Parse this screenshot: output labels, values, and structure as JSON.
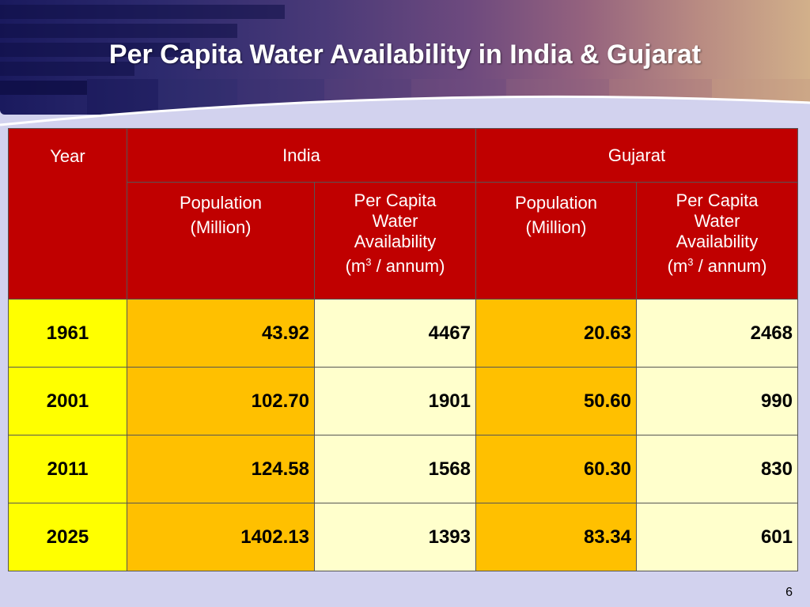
{
  "title": "Per Capita Water Availability in India & Gujarat",
  "table": {
    "year_header": "Year",
    "india_header": "India",
    "gujarat_header": "Gujarat",
    "pop_label": "Population",
    "pop_unit": "(Million)",
    "pcw_line1": "Per Capita",
    "pcw_line2": "Water",
    "pcw_line3": "Availability",
    "pcw_unit_open": "(m",
    "pcw_unit_sup": "3",
    "pcw_unit_close": " / annum)",
    "rows": [
      {
        "year": "1961",
        "india_pop": "43.92",
        "india_pcw": "4467",
        "guj_pop": "20.63",
        "guj_pcw": "2468"
      },
      {
        "year": "2001",
        "india_pop": "102.70",
        "india_pcw": "1901",
        "guj_pop": "50.60",
        "guj_pcw": "990"
      },
      {
        "year": "2011",
        "india_pop": "124.58",
        "india_pcw": "1568",
        "guj_pop": "60.30",
        "guj_pcw": "830"
      },
      {
        "year": "2025",
        "india_pop": "1402.13",
        "india_pcw": "1393",
        "guj_pop": "83.34",
        "guj_pcw": "601"
      }
    ]
  },
  "page_number": "6",
  "colors": {
    "header_bg": "#c00000",
    "year_bg": "#ffff00",
    "population_bg": "#ffc000",
    "per_capita_bg": "#ffffcc",
    "slide_bg": "#d2d2ee"
  }
}
